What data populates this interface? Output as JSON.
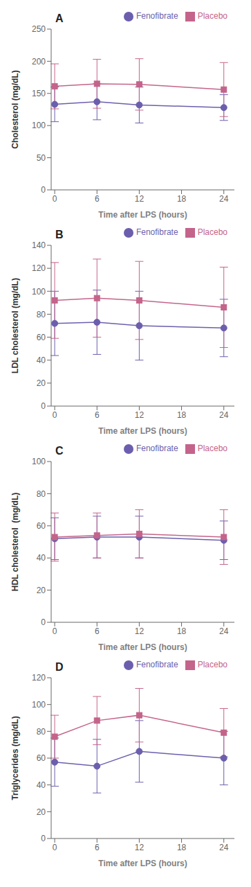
{
  "chart_data": [
    {
      "type": "line",
      "annotations": [
        "A"
      ],
      "xlabel": "Time after LPS (hours)",
      "ylabel": "Cholesterol (mg/dL)",
      "x": [
        0,
        6,
        12,
        24
      ],
      "xlim": [
        -0.5,
        25.5
      ],
      "xticks": [
        0,
        6,
        12,
        18,
        24
      ],
      "ylim": [
        0,
        250
      ],
      "yticks": [
        0,
        50,
        100,
        150,
        200,
        250
      ],
      "grid": false,
      "legend": "upper right",
      "series": [
        {
          "name": "Fenofibrate",
          "color": "#6b5fad",
          "marker": "circle",
          "values": [
            133,
            137,
            132,
            128
          ],
          "errors": [
            27,
            28,
            28,
            20
          ]
        },
        {
          "name": "Placebo",
          "color": "#c4648a",
          "marker": "square",
          "values": [
            161,
            165,
            164,
            156
          ],
          "errors": [
            35,
            38,
            40,
            42
          ]
        }
      ]
    },
    {
      "type": "line",
      "annotations": [
        "B"
      ],
      "xlabel": "Time after LPS (hours)",
      "ylabel": "LDL cholesterol (mg/dL)",
      "x": [
        0,
        6,
        12,
        24
      ],
      "xlim": [
        -0.5,
        25.5
      ],
      "xticks": [
        0,
        6,
        12,
        18,
        24
      ],
      "ylim": [
        0,
        140
      ],
      "yticks": [
        0,
        20,
        40,
        60,
        80,
        100,
        120,
        140
      ],
      "grid": false,
      "legend": "upper right",
      "series": [
        {
          "name": "Fenofibrate",
          "color": "#6b5fad",
          "marker": "circle",
          "values": [
            72,
            73,
            70,
            68
          ],
          "errors": [
            28,
            28,
            30,
            25
          ]
        },
        {
          "name": "Placebo",
          "color": "#c4648a",
          "marker": "square",
          "values": [
            92,
            94,
            92,
            86
          ],
          "errors": [
            33,
            34,
            34,
            35
          ]
        }
      ]
    },
    {
      "type": "line",
      "annotations": [
        "C"
      ],
      "xlabel": "Time after LPS (hours)",
      "ylabel": "HDL cholesterol  (mg/dL)",
      "x": [
        0,
        6,
        12,
        24
      ],
      "xlim": [
        -0.5,
        25.5
      ],
      "xticks": [
        0,
        6,
        12,
        18,
        24
      ],
      "ylim": [
        0,
        100
      ],
      "yticks": [
        0,
        20,
        40,
        60,
        80,
        100
      ],
      "grid": false,
      "legend": "upper right",
      "series": [
        {
          "name": "Fenofibrate",
          "color": "#6b5fad",
          "marker": "circle",
          "values": [
            52,
            53,
            53,
            51
          ],
          "errors": [
            13,
            13,
            13,
            12
          ]
        },
        {
          "name": "Placebo",
          "color": "#c4648a",
          "marker": "square",
          "values": [
            53,
            54,
            55,
            53
          ],
          "errors": [
            15,
            14,
            15,
            17
          ]
        }
      ]
    },
    {
      "type": "line",
      "annotations": [
        "D"
      ],
      "xlabel": "Time after LPS (hours)",
      "ylabel": "Triglycerides (mg/dL)",
      "x": [
        0,
        6,
        12,
        24
      ],
      "xlim": [
        -0.5,
        25.5
      ],
      "xticks": [
        0,
        6,
        12,
        18,
        24
      ],
      "ylim": [
        0,
        120
      ],
      "yticks": [
        0,
        20,
        40,
        60,
        80,
        100,
        120
      ],
      "grid": false,
      "legend": "upper right",
      "series": [
        {
          "name": "Fenofibrate",
          "color": "#6b5fad",
          "marker": "circle",
          "values": [
            57,
            54,
            65,
            60
          ],
          "errors": [
            18,
            20,
            23,
            20
          ]
        },
        {
          "name": "Placebo",
          "color": "#c4648a",
          "marker": "square",
          "values": [
            76,
            88,
            92,
            79
          ],
          "errors": [
            16,
            18,
            20,
            18
          ]
        }
      ]
    }
  ]
}
